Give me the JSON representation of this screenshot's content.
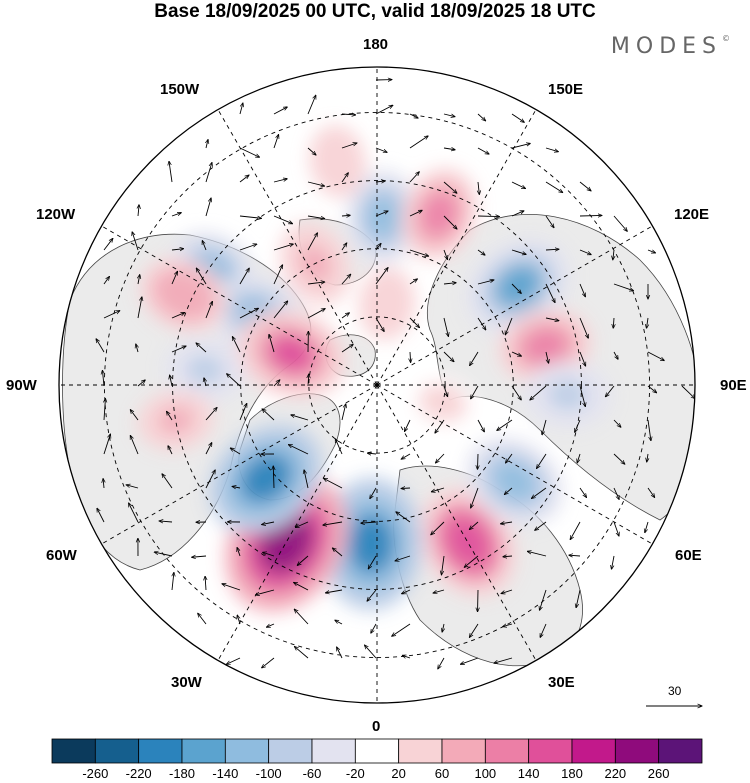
{
  "title": "Base 18/09/2025 00 UTC, valid 18/09/2025 18 UTC",
  "brand": "MODES",
  "brand_mark": "©",
  "longitude_labels": {
    "lon_180": "180",
    "lon_150W": "150W",
    "lon_150E": "150E",
    "lon_120W": "120W",
    "lon_120E": "120E",
    "lon_90W": "90W",
    "lon_90E": "90E",
    "lon_60W": "60W",
    "lon_60E": "60E",
    "lon_30W": "30W",
    "lon_30E": "30E",
    "lon_0": "0"
  },
  "wind_scale_label": "30",
  "colorbar": {
    "colors": [
      "#0b3a5c",
      "#155f8e",
      "#2b83bc",
      "#5ba3cf",
      "#8fbcdf",
      "#bccde6",
      "#e3e3f0",
      "#ffffff",
      "#f8d3d6",
      "#f3aab8",
      "#ec7fa6",
      "#e0509a",
      "#c2198b",
      "#8f0b7c",
      "#5c1478"
    ],
    "labels": [
      "-260",
      "-220",
      "-180",
      "-140",
      "-100",
      "-60",
      "-20",
      "20",
      "60",
      "100",
      "140",
      "180",
      "220",
      "260"
    ]
  },
  "anomaly_centers": [
    {
      "lon": 178,
      "lat": 53,
      "value": -110
    },
    {
      "lon": 207,
      "lat": 60,
      "value": 90
    },
    {
      "lon": 235,
      "lat": 46,
      "value": -100
    },
    {
      "lon": 240,
      "lat": 60,
      "value": -120
    },
    {
      "lon": 245,
      "lat": 43,
      "value": 100
    },
    {
      "lon": 265,
      "lat": 52,
      "value": -80
    },
    {
      "lon": 250,
      "lat": 70,
      "value": 150
    },
    {
      "lon": 190,
      "lat": 40,
      "value": 60
    },
    {
      "lon": 160,
      "lat": 50,
      "value": 110
    },
    {
      "lon": 173,
      "lat": 72,
      "value": 60
    },
    {
      "lon": 125,
      "lat": 52,
      "value": -150
    },
    {
      "lon": 103,
      "lat": 52,
      "value": 110
    },
    {
      "lon": 87,
      "lat": 48,
      "value": -90
    },
    {
      "lon": 30,
      "lat": 50,
      "value": 160
    },
    {
      "lon": 55,
      "lat": 53,
      "value": -130
    },
    {
      "lon": 358,
      "lat": 55,
      "value": -200
    },
    {
      "lon": 330,
      "lat": 50,
      "value": 230
    },
    {
      "lon": 310,
      "lat": 58,
      "value": -180
    },
    {
      "lon": 280,
      "lat": 45,
      "value": 70
    },
    {
      "lon": 75,
      "lat": 75,
      "value": 50
    }
  ]
}
